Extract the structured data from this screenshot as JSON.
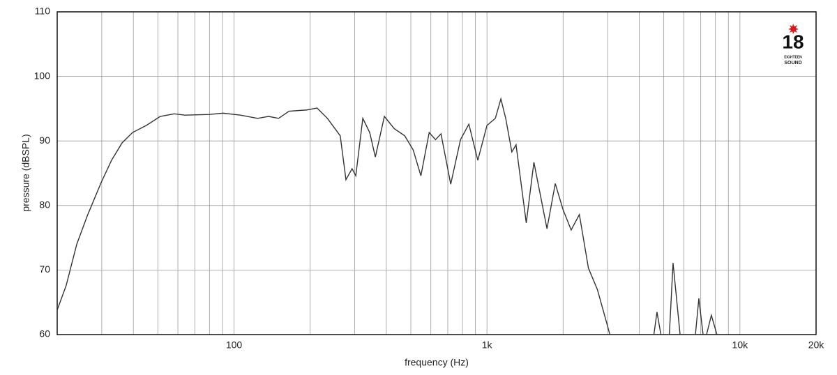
{
  "chart_data": {
    "type": "line",
    "xlabel": "frequency (Hz)",
    "ylabel": "pressure (dBSPL)",
    "xscale": "log",
    "xlim": [
      20,
      20000
    ],
    "ylim": [
      60,
      110
    ],
    "xticks": [
      100,
      {
        "value": 1000,
        "label": "1k"
      },
      {
        "value": 10000,
        "label": "10k"
      },
      {
        "value": 20000,
        "label": "20k"
      }
    ],
    "x_minor_grid": [
      30,
      40,
      50,
      60,
      70,
      80,
      90,
      200,
      300,
      400,
      500,
      600,
      700,
      800,
      900,
      2000,
      3000,
      4000,
      5000,
      6000,
      7000,
      8000,
      9000
    ],
    "yticks": [
      60,
      70,
      80,
      90,
      100,
      110
    ],
    "grid": true,
    "series": [
      {
        "color": "#333333",
        "x": [
          20,
          21.7,
          23.9,
          26.3,
          29.8,
          32.8,
          36.1,
          39.7,
          45,
          51.1,
          58,
          63.9,
          79.9,
          90.6,
          106,
          124,
          137,
          150,
          165,
          194,
          213,
          234,
          263,
          277,
          293,
          303,
          323,
          344,
          362,
          393,
          430,
          473,
          511,
          548,
          591,
          626,
          658,
          719,
          786,
          848,
          920,
          1000,
          1079,
          1135,
          1186,
          1254,
          1303,
          1430,
          1533,
          1727,
          1862,
          1997,
          2152,
          2319,
          2518,
          2731,
          2984,
          3060,
          null,
          4570,
          4700,
          4870,
          null,
          5260,
          5440,
          5800,
          null,
          6670,
          6880,
          7150,
          null,
          7380,
          7710,
          8110
        ],
        "values": [
          63.8,
          67.6,
          74,
          78.4,
          83.5,
          87,
          89.7,
          91.3,
          92.4,
          93.8,
          94.2,
          94,
          94.1,
          94.3,
          94,
          93.5,
          93.8,
          93.5,
          94.6,
          94.8,
          95.1,
          93.5,
          90.8,
          84,
          85.7,
          84.6,
          93.5,
          91.3,
          87.5,
          93.8,
          91.9,
          90.8,
          88.6,
          84.6,
          91.3,
          90.2,
          91.1,
          83.3,
          90.2,
          92.6,
          87,
          92.4,
          93.5,
          96.5,
          93.5,
          88.3,
          89.4,
          77.3,
          86.7,
          76.4,
          83.4,
          79.4,
          76.2,
          78.6,
          70.3,
          67,
          61.6,
          60,
          null,
          60,
          63.5,
          60,
          null,
          60,
          71.1,
          60,
          null,
          60,
          65.6,
          60,
          null,
          60,
          63,
          60
        ]
      }
    ],
    "logo": {
      "number": "18",
      "line1": "EIGHTEEN",
      "line2": "SOUND"
    }
  }
}
